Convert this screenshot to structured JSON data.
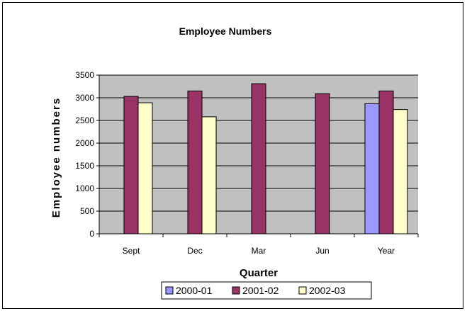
{
  "chart_data": {
    "type": "bar",
    "title": "Employee Numbers",
    "xlabel": "Quarter",
    "ylabel": "Employee numbers",
    "ylim": [
      0,
      3500
    ],
    "yticks": [
      0,
      500,
      1000,
      1500,
      2000,
      2500,
      3000,
      3500
    ],
    "grid": true,
    "legend_position": "bottom",
    "categories": [
      "Sept",
      "Dec",
      "Mar",
      "Jun",
      "Year"
    ],
    "series": [
      {
        "name": "2000-01",
        "color": "#9999ff",
        "values": [
          null,
          null,
          null,
          null,
          2870
        ]
      },
      {
        "name": "2001-02",
        "color": "#993366",
        "values": [
          3030,
          3150,
          3310,
          3090,
          3150
        ]
      },
      {
        "name": "2002-03",
        "color": "#ffffcc",
        "values": [
          2890,
          2580,
          null,
          null,
          2740
        ]
      }
    ],
    "plot_background": "#c0c0c0"
  }
}
